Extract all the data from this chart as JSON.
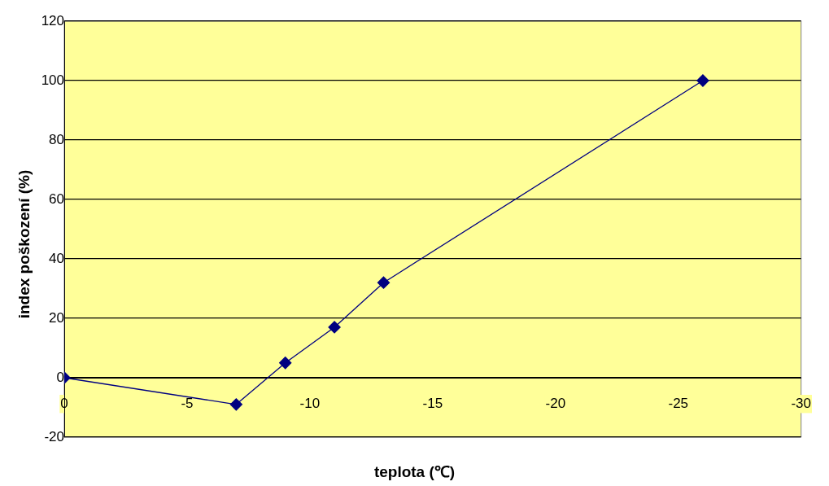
{
  "chart_data": {
    "type": "line",
    "xlabel": "teplota (℃)",
    "ylabel": "index poškození (%)",
    "x": [
      0,
      -7,
      -9,
      -11,
      -13,
      -26
    ],
    "series": [
      {
        "color": "#000080",
        "values": [
          0,
          -9,
          5,
          17,
          32,
          100
        ]
      }
    ],
    "xlim": [
      0,
      -30
    ],
    "ylim": [
      -20,
      120
    ],
    "xticks": [
      0,
      -5,
      -10,
      -15,
      -20,
      -25,
      -30
    ],
    "yticks": [
      -20,
      0,
      20,
      40,
      60,
      80,
      100,
      120
    ],
    "grid": "y",
    "marker": "diamond",
    "line_style": "solid"
  }
}
